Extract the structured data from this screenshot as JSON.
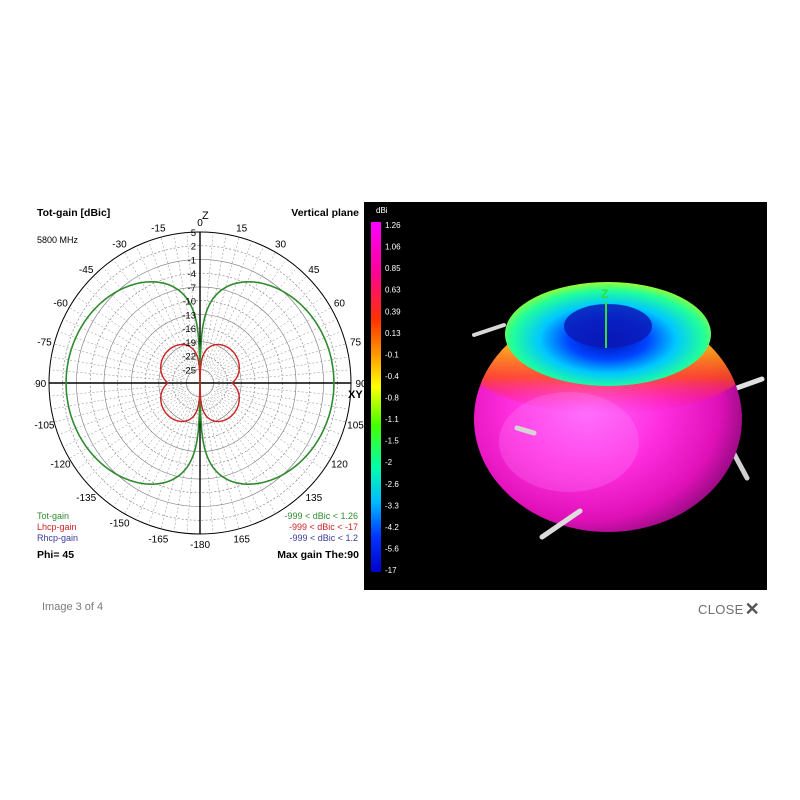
{
  "polar_plot": {
    "title_left": "Tot-gain [dBic]",
    "title_right": "Vertical plane",
    "frequency": "5800 MHz",
    "axis_top": "Z",
    "axis_right": "XY",
    "radial_labels": [
      "5",
      "2",
      "-1",
      "-4",
      "-7",
      "-10",
      "-13",
      "-16",
      "-19",
      "-22",
      "-25"
    ],
    "angle_labels": [
      {
        "text": "0",
        "deg": 0
      },
      {
        "text": "15",
        "deg": 15
      },
      {
        "text": "30",
        "deg": 30
      },
      {
        "text": "45",
        "deg": 45
      },
      {
        "text": "60",
        "deg": 60
      },
      {
        "text": "75",
        "deg": 75
      },
      {
        "text": "90",
        "deg": 90
      },
      {
        "text": "105",
        "deg": 105
      },
      {
        "text": "120",
        "deg": 120
      },
      {
        "text": "135",
        "deg": 135
      },
      {
        "text": "165",
        "deg": 165
      },
      {
        "text": "-180",
        "deg": 180
      },
      {
        "text": "-165",
        "deg": -165
      },
      {
        "text": "-135",
        "deg": -135
      },
      {
        "text": "-120",
        "deg": -120
      },
      {
        "text": "-105",
        "deg": -105
      },
      {
        "text": "-90",
        "deg": -90
      },
      {
        "text": "-75",
        "deg": -75
      },
      {
        "text": "-60",
        "deg": -60
      },
      {
        "text": "-45",
        "deg": -45
      },
      {
        "text": "-30",
        "deg": -30
      },
      {
        "text": "-15",
        "deg": -15
      },
      {
        "text": "-150",
        "deg": -150
      }
    ],
    "legend": [
      {
        "name": "Tot-gain",
        "range": "-999 < dBic < 1.26",
        "color": "#2e8b2e"
      },
      {
        "name": "Lhcp-gain",
        "range": "-999 < dBic < -17",
        "color": "#cc2222"
      },
      {
        "name": "Rhcp-gain",
        "range": "-999 < dBic < 1.2",
        "color": "#3a3a9a"
      }
    ],
    "phi_label": "Phi= 45",
    "max_gain_label": "Max gain The:90"
  },
  "pattern_3d": {
    "scale_unit": "dBi",
    "scale_labels": [
      "1.26",
      "1.06",
      "0.85",
      "0.63",
      "0.39",
      "0.13",
      "-0.1",
      "-0.4",
      "-0.8",
      "-1.1",
      "-1.5",
      "-2",
      "-2.6",
      "-3.3",
      "-4.2",
      "-5.6",
      "-17"
    ],
    "z_axis_label": "Z"
  },
  "footer": {
    "caption": "Image 3 of 4",
    "close_label": "CLOSE"
  }
}
